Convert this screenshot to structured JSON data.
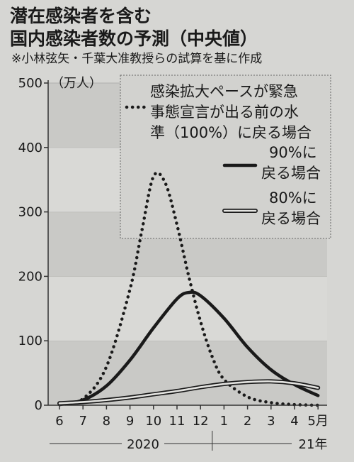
{
  "header": {
    "title_line1": "潜在感染者を含む",
    "title_line2": "国内感染者数の予測（中央値）",
    "note": "※小林弦矢・千葉大准教授らの試算を基に作成"
  },
  "chart_data": {
    "type": "line",
    "title": "国内感染者数の予測（中央値）",
    "ylabel": "（万人）",
    "ylim": [
      0,
      500
    ],
    "yticks": [
      "0",
      "100",
      "200",
      "300",
      "400",
      "500"
    ],
    "x_ticks": [
      "6",
      "7",
      "8",
      "9",
      "10",
      "11",
      "12",
      "1",
      "2",
      "3",
      "4",
      "5月"
    ],
    "year_labels": [
      "2020",
      "21年"
    ],
    "grid": "horizontal bands",
    "legend_position": "top-right",
    "x_unit": "month index from June 2020 (0 = 6月, 11 = 5月)",
    "series": [
      {
        "name": "感染拡大ペースが緊急事態宣言が出る前の水準（100%）に戻る場合",
        "style": "dotted",
        "x": [
          0,
          1,
          2,
          3,
          3.5,
          4,
          4.5,
          5,
          5.5,
          6,
          6.5,
          7,
          8,
          9,
          10,
          11
        ],
        "y": [
          1,
          10,
          60,
          180,
          270,
          355,
          345,
          280,
          200,
          130,
          75,
          40,
          13,
          4,
          1,
          0
        ]
      },
      {
        "name": "90%に戻る場合",
        "style": "solid-thick",
        "x": [
          0,
          1,
          2,
          3,
          4,
          5,
          5.5,
          6,
          7,
          8,
          9,
          10,
          11
        ],
        "y": [
          1,
          8,
          30,
          70,
          120,
          165,
          175,
          170,
          135,
          90,
          55,
          32,
          15
        ]
      },
      {
        "name": "80%に戻る場合",
        "style": "double-line",
        "x": [
          0,
          1,
          2,
          3,
          4,
          5,
          6,
          7,
          8,
          9,
          10,
          11
        ],
        "y": [
          3,
          5,
          8,
          12,
          17,
          22,
          28,
          33,
          36,
          37,
          34,
          27
        ]
      }
    ],
    "legend": [
      {
        "label": "感染拡大ペースが緊急事態宣言が出る前の水準（100%）に戻る場合",
        "lines": [
          "感染拡大ペースが緊急",
          "事態宣言が出る前の水",
          "準（100%）に戻る場合"
        ],
        "style": "dotted"
      },
      {
        "label": "90%に戻る場合",
        "lines": [
          "90%に",
          "戻る場合"
        ],
        "style": "solid-thick"
      },
      {
        "label": "80%に戻る場合",
        "lines": [
          "80%に",
          "戻る場合"
        ],
        "style": "double-line"
      }
    ]
  }
}
